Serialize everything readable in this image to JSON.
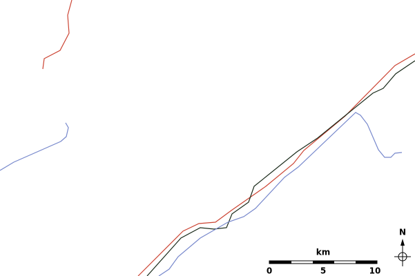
{
  "scale_bar": {
    "unit": "km",
    "ticks": [
      "0",
      "5",
      "10"
    ]
  },
  "compass": {
    "label": "N"
  }
}
